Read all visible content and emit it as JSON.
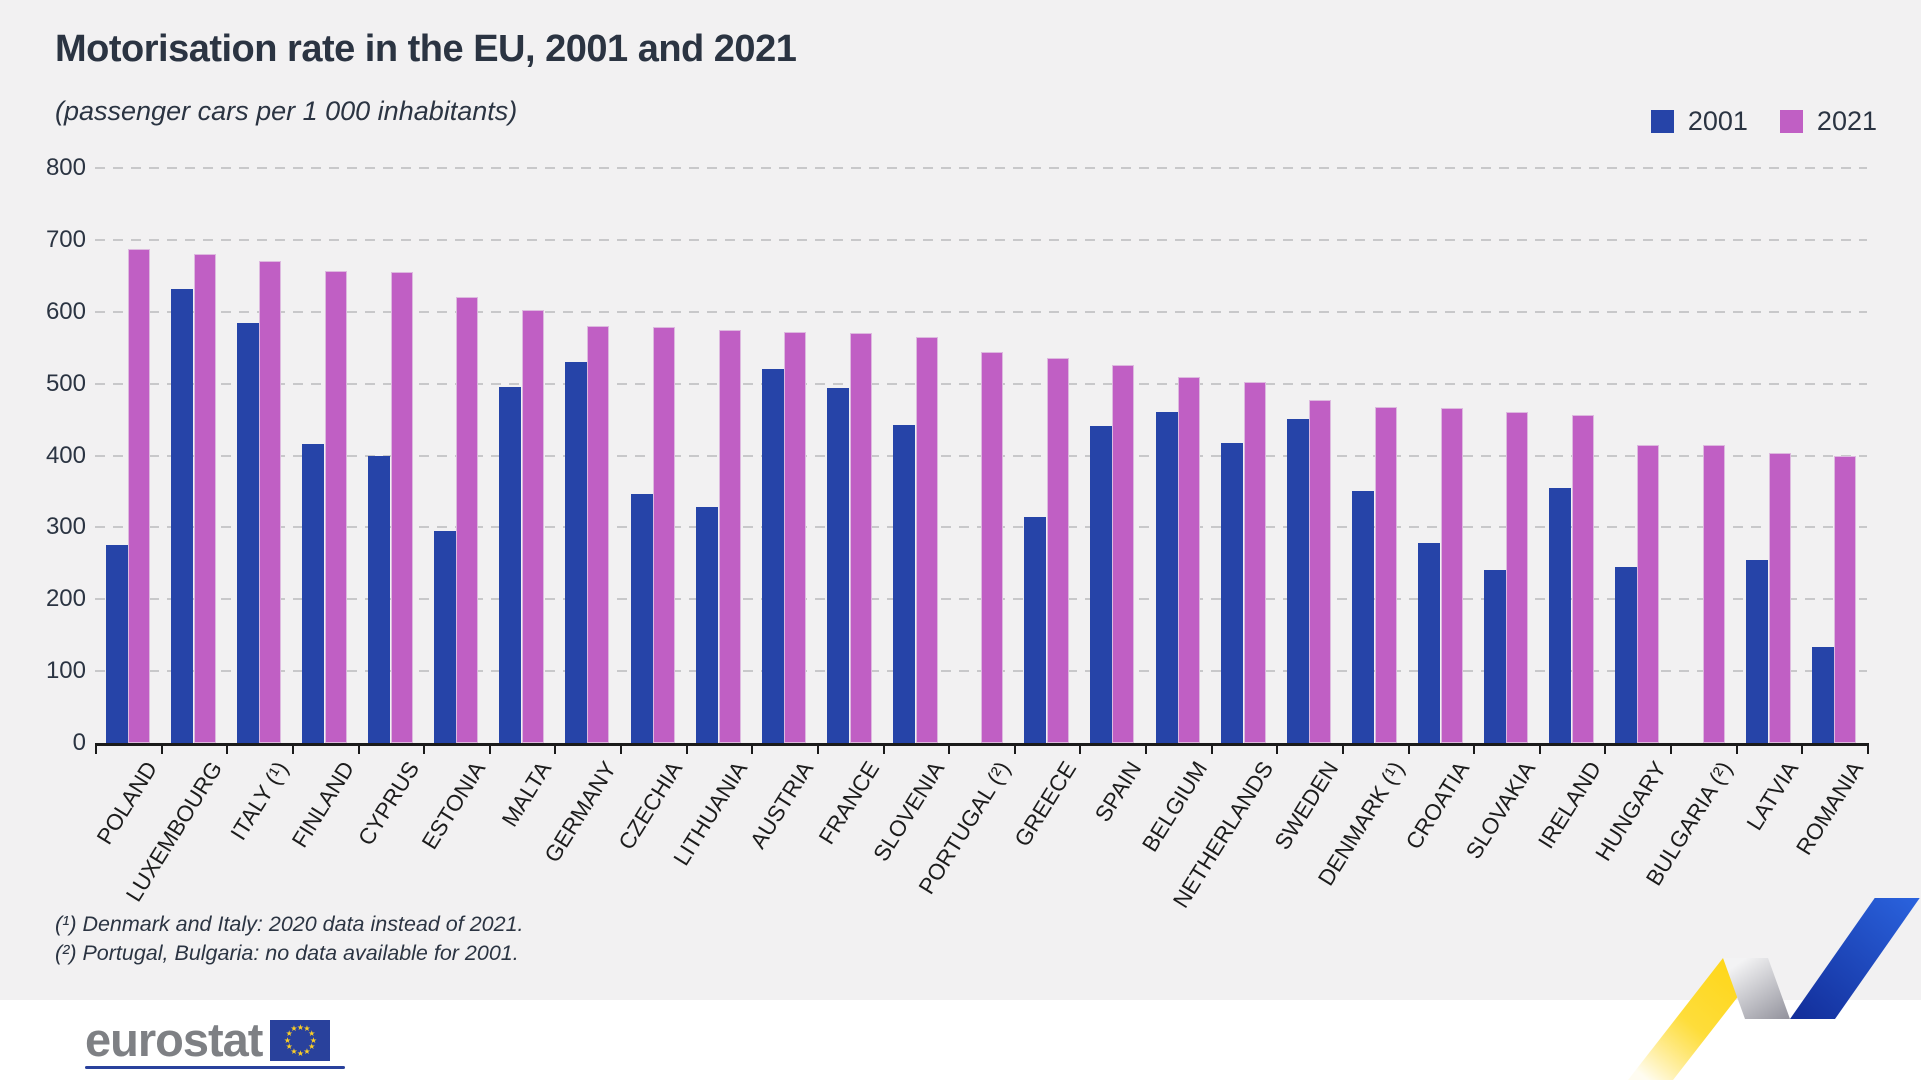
{
  "title": "Motorisation rate in the EU, 2001 and 2021",
  "subtitle": "(passenger cars per 1 000 inhabitants)",
  "legend": {
    "items": [
      {
        "label": "2001",
        "color": "#2644a8"
      },
      {
        "label": "2021",
        "color": "#c05fc4"
      }
    ],
    "position": "top-right"
  },
  "footnotes": {
    "line1": "(¹) Denmark and Italy: 2020 data instead of 2021.",
    "line2": "(²) Portugal, Bulgaria: no data available for 2001."
  },
  "logo": {
    "text": "eurostat",
    "flag": "eu-flag"
  },
  "colors": {
    "background": "#f2f1f2",
    "bar_2001": "#2644a8",
    "bar_2021": "#c05fc4",
    "text_dark": "#2b3442",
    "gridline": "#c8c8ca",
    "ribbon_yellow": "#fed514",
    "ribbon_blue": "#1d4fc4"
  },
  "chart_data": {
    "type": "bar",
    "title": "Motorisation rate in the EU, 2001 and 2021",
    "subtitle": "(passenger cars per 1 000 inhabitants)",
    "categories": [
      "POLAND",
      "LUXEMBOURG",
      "ITALY (¹)",
      "FINLAND",
      "CYPRUS",
      "ESTONIA",
      "MALTA",
      "GERMANY",
      "CZECHIA",
      "LITHUANIA",
      "AUSTRIA",
      "FRANCE",
      "SLOVENIA",
      "PORTUGAL (²)",
      "GREECE",
      "SPAIN",
      "BELGIUM",
      "NETHERLANDS",
      "SWEDEN",
      "DENMARK (¹)",
      "CROATIA",
      "SLOVAKIA",
      "IRELAND",
      "HUNGARY",
      "BULGARIA (²)",
      "LATVIA",
      "ROMANIA"
    ],
    "series": [
      {
        "name": "2001",
        "color": "#2644a8",
        "values": [
          276,
          632,
          584,
          416,
          399,
          295,
          495,
          530,
          346,
          329,
          520,
          494,
          443,
          null,
          315,
          441,
          461,
          417,
          451,
          350,
          278,
          241,
          355,
          245,
          null,
          254,
          134
        ]
      },
      {
        "name": "2021",
        "color": "#c05fc4",
        "values": [
          687,
          681,
          670,
          657,
          655,
          621,
          602,
          580,
          579,
          574,
          572,
          571,
          565,
          544,
          536,
          526,
          509,
          502,
          477,
          467,
          466,
          460,
          456,
          415,
          414,
          403,
          400
        ]
      }
    ],
    "xlabel": "",
    "ylabel": "",
    "ylim": [
      0,
      800
    ],
    "yticks": [
      0,
      100,
      200,
      300,
      400,
      500,
      600,
      700,
      800
    ],
    "grid": "horizontal-dashed",
    "legend_position": "top-right",
    "notes": [
      "(¹) Denmark and Italy: 2020 data instead of 2021.",
      "(²) Portugal, Bulgaria: no data available for 2001."
    ]
  }
}
